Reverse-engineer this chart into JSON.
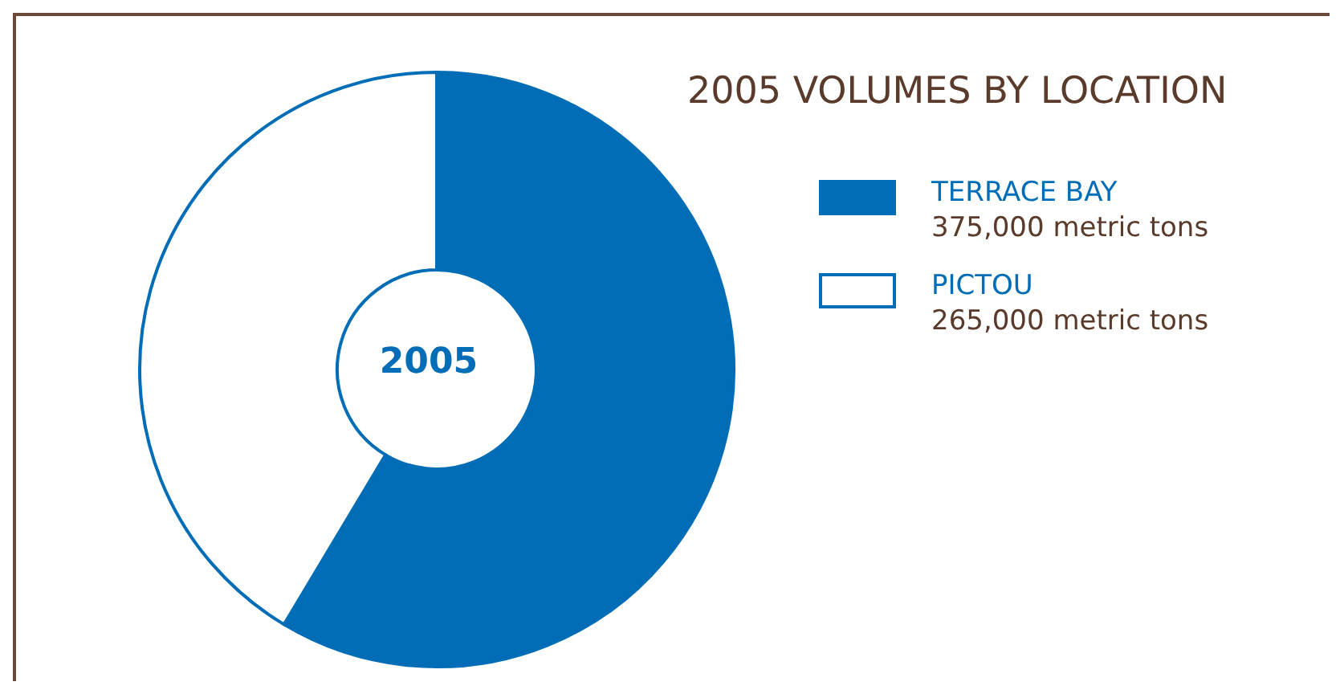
{
  "chart_data": {
    "type": "donut",
    "title": "2005 VOLUMES BY LOCATION",
    "categories": [
      "TERRACE BAY",
      "PICTOU"
    ],
    "values": [
      375000,
      265000
    ],
    "colors": [
      "#006db6",
      "#ffffff"
    ],
    "value_labels": [
      "375,000 metric tons",
      "265,000 metric tons"
    ],
    "annotations": [
      "2005"
    ],
    "legend": "right"
  }
}
